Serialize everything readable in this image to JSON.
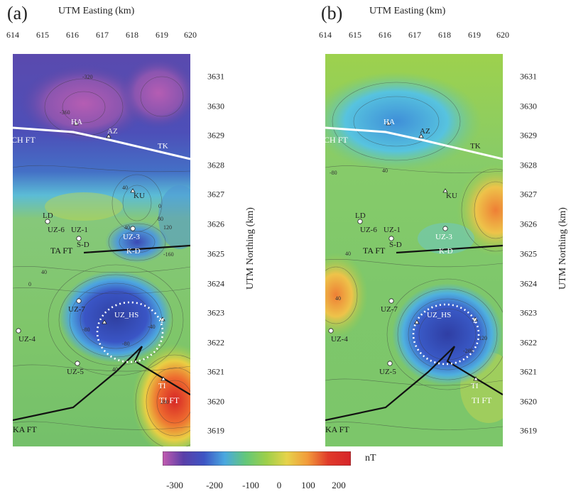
{
  "panels": [
    {
      "tag": "(a)",
      "x_axis_title": "UTM Easting (km)",
      "y_axis_title": "UTM Northing (km)",
      "easting_ticks": [
        "614",
        "615",
        "616",
        "617",
        "618",
        "619",
        "620"
      ],
      "northing_ticks": [
        "3631",
        "3630",
        "3629",
        "3628",
        "3627",
        "3626",
        "3625",
        "3624",
        "3623",
        "3622",
        "3621",
        "3620",
        "3619"
      ],
      "labels": {
        "ha": "HA",
        "az": "AZ",
        "tk": "TK",
        "ch_ft": "CH FT",
        "ku": "KU",
        "ld": "LD",
        "uz6": "UZ-6",
        "uz1": "UZ-1",
        "sd": "S-D",
        "uz3": "UZ-3",
        "ta_ft": "TA FT",
        "kd": "K-D",
        "uz7": "UZ-7",
        "uz_hs": "UZ_HS",
        "y": "Y",
        "uz4": "UZ-4",
        "uz5": "UZ-5",
        "ti": "TI",
        "ti_ft": "TI FT",
        "ka_ft": "KA FT"
      },
      "contour_labels": [
        "-320",
        "-360",
        "40",
        "0",
        "40",
        "120",
        "80",
        "-160",
        "40",
        "0",
        "-80",
        "40",
        "-40",
        "280",
        "-80"
      ]
    },
    {
      "tag": "(b)",
      "x_axis_title": "UTM Easting (km)",
      "y_axis_title": "UTM Northing (km)",
      "easting_ticks": [
        "614",
        "615",
        "616",
        "617",
        "618",
        "619",
        "620"
      ],
      "northing_ticks": [
        "3631",
        "3630",
        "3629",
        "3628",
        "3627",
        "3626",
        "3625",
        "3624",
        "3623",
        "3622",
        "3621",
        "3620",
        "3619"
      ],
      "labels": {
        "ha": "HA",
        "az": "AZ",
        "tk": "TK",
        "ch_ft": "CH FT",
        "ku": "KU",
        "ld": "LD",
        "uz6": "UZ-6",
        "uz1": "UZ-1",
        "sd": "S-D",
        "uz3": "UZ-3",
        "ta_ft": "TA FT",
        "kd": "K-D",
        "uz7": "UZ-7",
        "uz_hs": "UZ_HS",
        "y": "Y",
        "uz4": "UZ-4",
        "uz5": "UZ-5",
        "ti": "TI",
        "ti_ft": "TI FT",
        "ka_ft": "KA FT"
      },
      "contour_labels": [
        "-80",
        "40",
        "40",
        "40",
        "120",
        "-200"
      ]
    }
  ],
  "colorbar": {
    "unit": "nT",
    "ticks": [
      "-300",
      "-200",
      "-100",
      "0",
      "100",
      "200"
    ],
    "colors": [
      "#c35bb0",
      "#5a3fa8",
      "#3d54c4",
      "#4aa8e0",
      "#63c77a",
      "#9ccf4a",
      "#e6d34a",
      "#f29a3a",
      "#e03a2a",
      "#d6252a"
    ]
  }
}
